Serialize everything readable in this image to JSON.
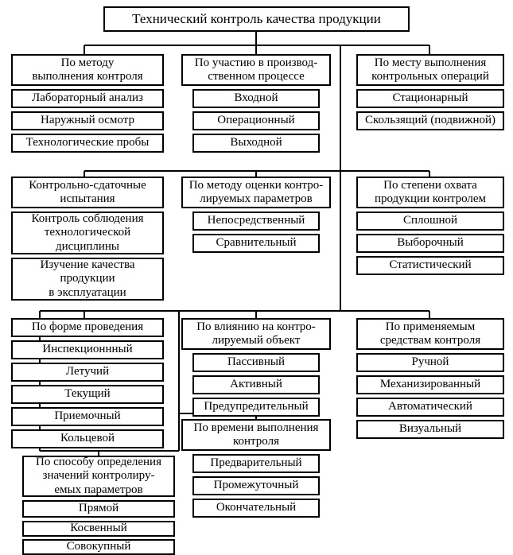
{
  "diagram": {
    "type": "tree",
    "background_color": "#ffffff",
    "border_color": "#000000",
    "border_width": 2,
    "font_family": "Times New Roman",
    "root_fontsize": 17,
    "header_fontsize": 15,
    "item_fontsize": 15,
    "text_color": "#000000",
    "root": {
      "label": "Технический контроль качества продукции"
    },
    "columns": [
      {
        "groups": [
          {
            "header": "По методу\nвыполнения контроля",
            "items": [
              "Лабораторный анализ",
              "Наружный осмотр",
              "Технологические пробы"
            ]
          },
          {
            "header": "Контрольно-сдаточные\nиспытания",
            "items": [
              "Контроль соблюдения\nтехнологической\nдисциплины",
              "Изучение качества\nпродукции\nв эксплуатации"
            ]
          },
          {
            "header": "По форме проведения",
            "items": [
              "Инспекционнный",
              "Летучий",
              "Текущий",
              "Приемочный",
              "Кольцевой"
            ]
          },
          {
            "header": "По способу определения\nзначений контролиру-\nемых параметров",
            "items": [
              "Прямой",
              "Косвенный",
              "Совокупный"
            ]
          }
        ]
      },
      {
        "groups": [
          {
            "header": "По участию в производ-\nственном процессе",
            "items": [
              "Входной",
              "Операционный",
              "Выходной"
            ]
          },
          {
            "header": "По методу оценки контро-\nлируемых параметров",
            "items": [
              "Непосредственный",
              "Сравнительный"
            ]
          },
          {
            "header": "По влиянию на контро-\nлируемый объект",
            "items": [
              "Пассивный",
              "Активный",
              "Предупредительный"
            ]
          },
          {
            "header": "По времени выполнения\nконтроля",
            "items": [
              "Предварительный",
              "Промежуточный",
              "Окончательный"
            ]
          }
        ]
      },
      {
        "groups": [
          {
            "header": "По месту выполнения\nконтрольных операций",
            "items": [
              "Стационарный",
              "Скользящий (подвижной)"
            ]
          },
          {
            "header": "По степени охвата\nпродукции контролем",
            "items": [
              "Сплошной",
              "Выборочный",
              "Статистический"
            ]
          },
          {
            "header": "По применяемым\nсредствам контроля",
            "items": [
              "Ручной",
              "Механизированный",
              "Автоматический",
              "Визуальный"
            ]
          }
        ]
      }
    ]
  }
}
